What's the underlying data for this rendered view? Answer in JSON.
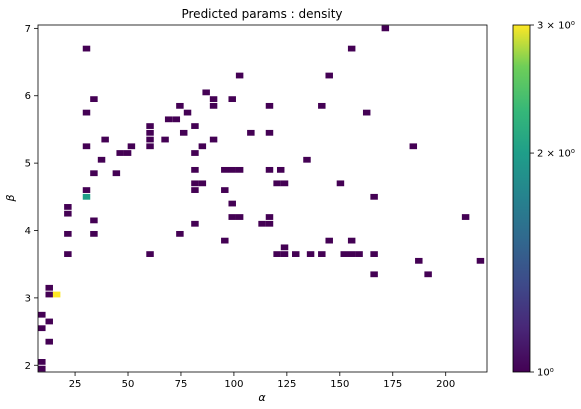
{
  "chart_data": {
    "type": "heatmap",
    "title": "Predicted params : density",
    "xlabel": "α",
    "ylabel": "β",
    "xlim": [
      7.5,
      219.5
    ],
    "ylim": [
      1.9,
      7.05
    ],
    "xticks": [
      25,
      50,
      75,
      100,
      125,
      150,
      175,
      200
    ],
    "yticks": [
      2,
      3,
      4,
      5,
      6,
      7
    ],
    "bin_width": [
      3.53,
      0.0858
    ],
    "colorbar": {
      "scale": "log",
      "range": [
        1,
        3
      ],
      "ticks": [
        {
          "value": 1,
          "label": "10⁰"
        },
        {
          "value": 2,
          "label": "2 × 10⁰"
        },
        {
          "value": 3,
          "label": "3 × 10⁰"
        }
      ]
    },
    "cells": [
      [
        9.3,
        1.95,
        1
      ],
      [
        9.3,
        2.05,
        1
      ],
      [
        9.3,
        2.55,
        1
      ],
      [
        9.3,
        2.75,
        1
      ],
      [
        12.8,
        2.35,
        1
      ],
      [
        12.8,
        2.65,
        1
      ],
      [
        12.8,
        3.05,
        1
      ],
      [
        12.8,
        3.15,
        1
      ],
      [
        16.3,
        3.05,
        3
      ],
      [
        21.6,
        3.65,
        1
      ],
      [
        21.6,
        3.95,
        1
      ],
      [
        21.6,
        4.25,
        1
      ],
      [
        21.6,
        4.35,
        1
      ],
      [
        30.4,
        4.5,
        2
      ],
      [
        30.4,
        4.6,
        1
      ],
      [
        30.4,
        5.25,
        1
      ],
      [
        30.4,
        5.75,
        1
      ],
      [
        30.4,
        6.7,
        1
      ],
      [
        33.9,
        3.95,
        1
      ],
      [
        33.9,
        4.15,
        1
      ],
      [
        33.9,
        4.85,
        1
      ],
      [
        33.9,
        5.95,
        1
      ],
      [
        37.5,
        5.05,
        1
      ],
      [
        39.2,
        5.35,
        1
      ],
      [
        44.5,
        4.85,
        1
      ],
      [
        46.3,
        5.15,
        1
      ],
      [
        49.8,
        5.15,
        1
      ],
      [
        51.6,
        5.25,
        1
      ],
      [
        60.4,
        3.65,
        1
      ],
      [
        60.4,
        5.25,
        1
      ],
      [
        60.4,
        5.35,
        1
      ],
      [
        60.4,
        5.45,
        1
      ],
      [
        60.4,
        5.55,
        1
      ],
      [
        67.5,
        5.35,
        1
      ],
      [
        69.2,
        5.65,
        1
      ],
      [
        72.8,
        5.65,
        1
      ],
      [
        74.5,
        5.85,
        1
      ],
      [
        74.5,
        3.95,
        1
      ],
      [
        76.3,
        5.45,
        1
      ],
      [
        78.1,
        5.75,
        1
      ],
      [
        81.6,
        5.55,
        1
      ],
      [
        81.6,
        5.15,
        1
      ],
      [
        81.6,
        4.9,
        1
      ],
      [
        81.6,
        4.6,
        1
      ],
      [
        81.6,
        4.1,
        1
      ],
      [
        81.6,
        4.7,
        1
      ],
      [
        85.1,
        4.7,
        1
      ],
      [
        85.1,
        5.25,
        1
      ],
      [
        86.9,
        6.05,
        1
      ],
      [
        90.4,
        5.95,
        1
      ],
      [
        90.4,
        5.85,
        1
      ],
      [
        90.4,
        5.35,
        1
      ],
      [
        95.7,
        4.9,
        1
      ],
      [
        95.7,
        4.6,
        1
      ],
      [
        95.7,
        3.85,
        1
      ],
      [
        99.2,
        5.95,
        1
      ],
      [
        99.2,
        4.9,
        1
      ],
      [
        99.2,
        4.4,
        1
      ],
      [
        99.2,
        4.2,
        1
      ],
      [
        102.7,
        6.3,
        1
      ],
      [
        102.7,
        4.9,
        1
      ],
      [
        102.7,
        4.2,
        1
      ],
      [
        108.0,
        5.45,
        1
      ],
      [
        113.3,
        4.1,
        1
      ],
      [
        116.8,
        5.85,
        1
      ],
      [
        116.8,
        5.45,
        1
      ],
      [
        116.8,
        4.9,
        1
      ],
      [
        116.8,
        4.2,
        1
      ],
      [
        116.8,
        4.1,
        1
      ],
      [
        120.4,
        4.7,
        1
      ],
      [
        120.4,
        3.65,
        1
      ],
      [
        122.1,
        4.9,
        1
      ],
      [
        123.9,
        4.7,
        1
      ],
      [
        123.9,
        3.75,
        1
      ],
      [
        123.9,
        3.65,
        1
      ],
      [
        129.2,
        3.65,
        1
      ],
      [
        134.5,
        5.05,
        1
      ],
      [
        136.2,
        3.65,
        1
      ],
      [
        141.5,
        5.85,
        1
      ],
      [
        141.5,
        3.65,
        1
      ],
      [
        145.0,
        6.3,
        1
      ],
      [
        145.0,
        3.85,
        1
      ],
      [
        150.3,
        4.7,
        1
      ],
      [
        152.1,
        3.65,
        1
      ],
      [
        155.6,
        6.7,
        1
      ],
      [
        155.6,
        3.85,
        1
      ],
      [
        155.6,
        3.65,
        1
      ],
      [
        159.1,
        3.65,
        1
      ],
      [
        162.7,
        5.75,
        1
      ],
      [
        166.2,
        4.5,
        1
      ],
      [
        166.2,
        3.65,
        1
      ],
      [
        166.2,
        3.35,
        1
      ],
      [
        171.5,
        7.0,
        1
      ],
      [
        184.7,
        5.25,
        1
      ],
      [
        187.3,
        3.55,
        1
      ],
      [
        191.7,
        3.35,
        1
      ],
      [
        209.4,
        4.2,
        1
      ],
      [
        216.4,
        3.55,
        1
      ]
    ]
  }
}
